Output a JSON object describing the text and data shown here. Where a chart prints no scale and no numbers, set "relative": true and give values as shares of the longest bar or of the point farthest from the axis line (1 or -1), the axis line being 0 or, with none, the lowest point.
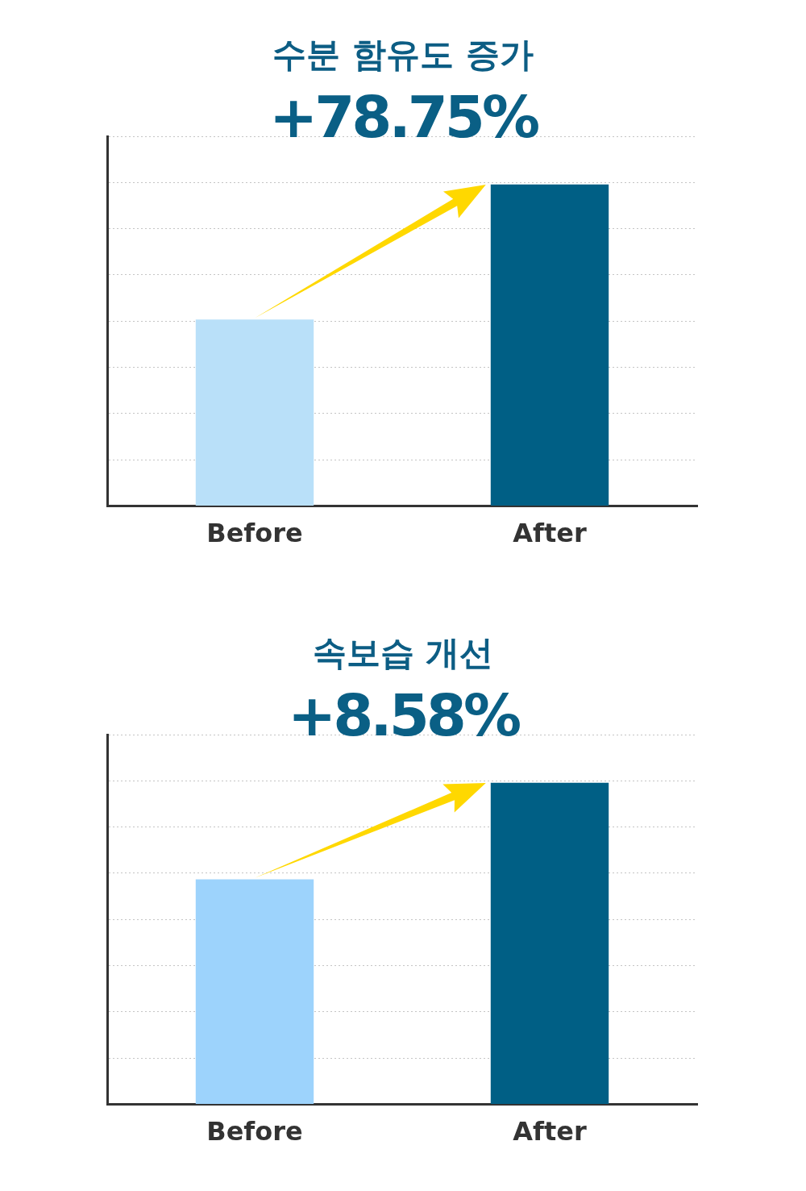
{
  "chart_data": [
    {
      "type": "bar",
      "title": "수분 함유도 증가",
      "subtitle": "+78.75%",
      "categories": [
        "Before",
        "After"
      ],
      "values": [
        0.58,
        1
      ],
      "colors": [
        "#b9e0f9",
        "#005f85"
      ],
      "relative": true,
      "grid": "y"
    },
    {
      "type": "bar",
      "title": "속보습 개선",
      "subtitle": "+8.58%",
      "categories": [
        "Before",
        "After"
      ],
      "values": [
        0.7,
        1
      ],
      "colors": [
        "#9dd3fc",
        "#005f85"
      ],
      "relative": true,
      "grid": "y"
    }
  ]
}
